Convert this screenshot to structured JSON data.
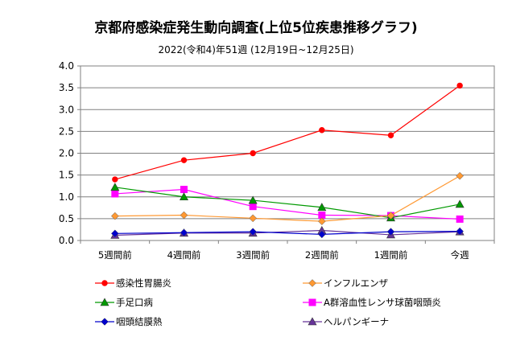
{
  "chart_data": {
    "type": "line",
    "title": "京都府感染症発生動向調査(上位5位疾患推移グラフ)",
    "subtitle": "2022(令和4)年51週 (12月19日~12月25日)",
    "categories": [
      "5週間前",
      "4週間前",
      "3週間前",
      "2週間前",
      "1週間前",
      "今週"
    ],
    "ylim": [
      0,
      4.0
    ],
    "yticks": [
      "0.0",
      "0.5",
      "1.0",
      "1.5",
      "2.0",
      "2.5",
      "3.0",
      "3.5",
      "4.0"
    ],
    "grid": true,
    "legend_position": "bottom",
    "series": [
      {
        "name": "感染性胃腸炎",
        "color": "#ff0000",
        "marker": "circle",
        "values": [
          1.4,
          1.84,
          2.0,
          2.53,
          2.41,
          3.55
        ]
      },
      {
        "name": "インフルエンザ",
        "color": "#ff9933",
        "marker": "diamond",
        "values": [
          0.56,
          0.58,
          0.51,
          0.44,
          0.57,
          1.48
        ]
      },
      {
        "name": "手足口病",
        "color": "#009900",
        "marker": "triangle",
        "values": [
          1.22,
          1.0,
          0.92,
          0.76,
          0.52,
          0.83
        ]
      },
      {
        "name": "A群溶血性レンサ球菌咽頭炎",
        "color": "#ff00ff",
        "marker": "square",
        "values": [
          1.07,
          1.17,
          0.78,
          0.58,
          0.57,
          0.49
        ]
      },
      {
        "name": "咽頭結膜熱",
        "color": "#0000cc",
        "marker": "diamond",
        "values": [
          0.16,
          0.18,
          0.2,
          0.14,
          0.2,
          0.21
        ]
      },
      {
        "name": "ヘルパンギーナ",
        "color": "#663399",
        "marker": "triangle",
        "values": [
          0.12,
          0.17,
          0.17,
          0.23,
          0.13,
          0.2
        ]
      }
    ]
  }
}
